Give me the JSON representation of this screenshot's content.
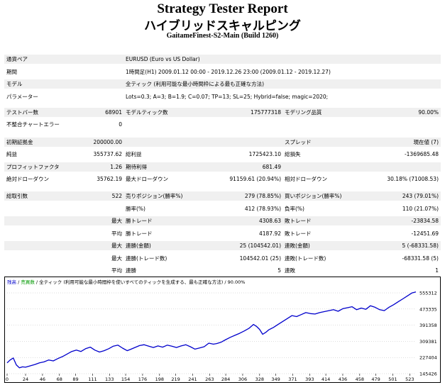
{
  "report": {
    "title": "Strategy Tester Report",
    "subtitle": "ハイブリッドスキャルピング",
    "server_build": "GaitameFinest-S2-Main (Build 1260)"
  },
  "params": {
    "symbol_label": "通貨ペア",
    "symbol": "EURUSD (Euro vs US Dollar)",
    "period_label": "期間",
    "period": "1時間足(H1) 2009.01.12 00:00 - 2019.12.26 23:00 (2009.01.12 - 2019.12.27)",
    "model_label": "モデル",
    "model": "全ティック (利用可能な最小時間枠による最も正確な方法)",
    "parameters_label": "パラメーター",
    "parameters": "Lots=0.3; A=3; B=1.9; C=0.07; TP=13; SL=25; Hybrid=false; magic=2020;"
  },
  "bars": {
    "bars_label": "テストバー数",
    "bars": "68901",
    "ticks_label": "モデルティック数",
    "ticks": "175777318",
    "quality_label": "モデリング品質",
    "quality": "90.00%",
    "mismatch_label": "不整合チャートエラー",
    "mismatch": "0"
  },
  "stats": {
    "deposit_label": "初期証拠金",
    "deposit": "200000.00",
    "spread_label": "スプレッド",
    "spread": "現在値 (7)",
    "net_label": "純益",
    "net": "355737.62",
    "gross_profit_label": "総利益",
    "gross_profit": "1725423.10",
    "gross_loss_label": "総損失",
    "gross_loss": "-1369685.48",
    "pf_label": "プロフィットファクタ",
    "pf": "1.26",
    "expected_label": "期待利得",
    "expected": "681.49",
    "abs_dd_label": "絶対ドローダウン",
    "abs_dd": "35762.19",
    "max_dd_label": "最大ドローダウン",
    "max_dd": "91159.61 (20.94%)",
    "rel_dd_label": "相対ドローダウン",
    "rel_dd": "30.18% (71008.53)"
  },
  "trades": {
    "total_label": "総取引数",
    "total": "522",
    "short_label": "売りポジション(勝率%)",
    "short": "279 (78.85%)",
    "long_label": "買いポジション(勝率%)",
    "long": "243 (79.01%)",
    "win_label": "勝率(%)",
    "win": "412 (78.93%)",
    "loss_label": "負率(%)",
    "loss": "110 (21.07%)",
    "max_label": "最大",
    "avg_label": "平均",
    "largest_win_label": "勝トレード",
    "largest_win": "4308.63",
    "largest_loss_label": "敗トレード",
    "largest_loss": "-23834.58",
    "avg_win_label": "勝トレード",
    "avg_win": "4187.92",
    "avg_loss_label": "敗トレード",
    "avg_loss": "-12451.69",
    "max_cons_wins_label": "連勝(金額)",
    "max_cons_wins": "25 (104542.01)",
    "max_cons_losses_label": "連敗(金額)",
    "max_cons_losses": "5 (-68331.58)",
    "max_cons_profit_label": "連勝(トレード数)",
    "max_cons_profit": "104542.01 (25)",
    "max_cons_loss_label": "連敗(トレード数)",
    "max_cons_loss": "-68331.58 (5)",
    "avg_cons_wins_label": "連勝",
    "avg_cons_wins": "5",
    "avg_cons_losses_label": "連敗",
    "avg_cons_losses": "1"
  },
  "chart_legend": {
    "a": "残高",
    "sep1": " / ",
    "b": "売買数",
    "sep2": " / ",
    "c": "全ティック (利用可能な最小時間枠を使いすべてのティックを生成する、最も正確な方法) / 90.00%"
  },
  "chart_data": {
    "type": "line",
    "ylim": [
      145426,
      595000
    ],
    "y_ticks": [
      555312,
      473335,
      391358,
      309381,
      227404,
      145426
    ],
    "x_ticks": [
      0,
      24,
      46,
      68,
      89,
      111,
      133,
      154,
      176,
      198,
      219,
      241,
      263,
      284,
      306,
      328,
      349,
      371,
      393,
      414,
      436,
      458,
      479,
      501,
      523
    ],
    "xlim": [
      0,
      531
    ],
    "series": [
      {
        "color": "#0000cc",
        "x": [
          0,
          4,
          8,
          12,
          16,
          20,
          24,
          30,
          36,
          42,
          48,
          54,
          60,
          66,
          72,
          78,
          84,
          90,
          96,
          102,
          108,
          114,
          120,
          126,
          132,
          138,
          144,
          150,
          156,
          160,
          166,
          172,
          178,
          184,
          190,
          196,
          202,
          208,
          214,
          220,
          226,
          232,
          238,
          244,
          250,
          256,
          262,
          268,
          272,
          278,
          284,
          290,
          296,
          302,
          308,
          314,
          320,
          324,
          328,
          332,
          336,
          340,
          346,
          352,
          358,
          364,
          370,
          376,
          382,
          388,
          394,
          400,
          406,
          412,
          418,
          424,
          430,
          436,
          442,
          448,
          454,
          460,
          466,
          472,
          478,
          484,
          490,
          496,
          502,
          508,
          514,
          520,
          526,
          531
        ],
        "y": [
          200000,
          215000,
          225000,
          190000,
          175000,
          180000,
          178000,
          185000,
          192000,
          200000,
          205000,
          215000,
          210000,
          222000,
          232000,
          245000,
          258000,
          265000,
          258000,
          272000,
          280000,
          265000,
          255000,
          262000,
          272000,
          285000,
          290000,
          275000,
          262000,
          268000,
          278000,
          288000,
          292000,
          285000,
          278000,
          286000,
          280000,
          290000,
          285000,
          278000,
          286000,
          292000,
          282000,
          270000,
          276000,
          282000,
          300000,
          295000,
          298000,
          305000,
          318000,
          330000,
          340000,
          350000,
          362000,
          375000,
          395000,
          385000,
          370000,
          345000,
          355000,
          368000,
          380000,
          395000,
          410000,
          425000,
          440000,
          435000,
          445000,
          455000,
          450000,
          448000,
          455000,
          460000,
          465000,
          470000,
          462000,
          475000,
          480000,
          485000,
          470000,
          478000,
          472000,
          490000,
          482000,
          470000,
          465000,
          482000,
          495000,
          510000,
          525000,
          540000,
          555000,
          560000
        ]
      }
    ]
  }
}
